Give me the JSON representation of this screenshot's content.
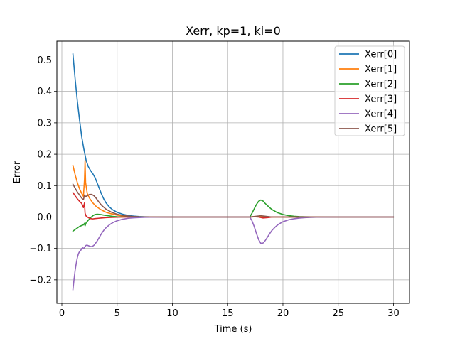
{
  "chart_data": {
    "type": "line",
    "title": "Xerr, kp=1, ki=0",
    "xlabel": "Time (s)",
    "ylabel": "Error",
    "xlim": [
      -0.45,
      31.45
    ],
    "ylim": [
      -0.275,
      0.56
    ],
    "xticks": [
      0,
      5,
      10,
      15,
      20,
      25,
      30
    ],
    "xtick_labels": [
      "0",
      "5",
      "10",
      "15",
      "20",
      "25",
      "30"
    ],
    "yticks": [
      -0.2,
      -0.1,
      0.0,
      0.1,
      0.2,
      0.3,
      0.4,
      0.5
    ],
    "ytick_labels": [
      "−0.2",
      "−0.1",
      "0.0",
      "0.1",
      "0.2",
      "0.3",
      "0.4",
      "0.5"
    ],
    "grid": true,
    "legend_position": "top-right",
    "series": [
      {
        "name": "Xerr[0]",
        "color": "#1f77b4",
        "x": [
          1.0,
          1.2,
          1.4,
          1.6,
          1.8,
          2.0,
          2.2,
          2.4,
          2.6,
          2.8,
          3.0,
          3.2,
          3.4,
          3.6,
          3.8,
          4.0,
          4.3,
          4.6,
          5.0,
          5.5,
          6.0,
          6.5,
          7.0,
          7.5,
          8.0,
          9.0,
          10.0,
          15.0,
          17.0,
          17.5,
          18.0,
          18.5,
          19.0,
          20.0,
          25.0,
          30.0
        ],
        "y": [
          0.52,
          0.44,
          0.37,
          0.31,
          0.255,
          0.215,
          0.18,
          0.16,
          0.148,
          0.138,
          0.126,
          0.108,
          0.09,
          0.072,
          0.057,
          0.045,
          0.032,
          0.023,
          0.015,
          0.009,
          0.005,
          0.003,
          0.0015,
          0.0008,
          0.0004,
          0.0001,
          0.0,
          0.0,
          0.0,
          0.001,
          0.002,
          0.001,
          0.0,
          0.0,
          0.0,
          0.0
        ]
      },
      {
        "name": "Xerr[1]",
        "color": "#ff7f0e",
        "x": [
          1.0,
          1.2,
          1.4,
          1.6,
          1.8,
          1.95,
          2.05,
          2.1,
          2.15,
          2.3,
          2.5,
          2.8,
          3.1,
          3.5,
          4.0,
          4.5,
          5.0,
          5.5,
          6.0,
          6.5,
          7.0,
          7.5,
          8.0,
          9.0,
          10.0,
          15.0,
          17.0,
          17.5,
          18.0,
          18.5,
          19.0,
          20.0,
          25.0,
          30.0
        ],
        "y": [
          0.165,
          0.135,
          0.11,
          0.09,
          0.075,
          0.066,
          0.12,
          0.18,
          0.11,
          0.075,
          0.06,
          0.045,
          0.034,
          0.024,
          0.015,
          0.01,
          0.006,
          0.0035,
          0.002,
          0.001,
          0.0005,
          0.0003,
          0.0001,
          0.0,
          0.0,
          0.0,
          0.0,
          0.001,
          0.003,
          0.001,
          0.0,
          0.0,
          0.0,
          0.0
        ]
      },
      {
        "name": "Xerr[2]",
        "color": "#2ca02c",
        "x": [
          1.0,
          1.2,
          1.4,
          1.6,
          1.8,
          1.95,
          2.05,
          2.1,
          2.2,
          2.4,
          2.6,
          2.8,
          3.0,
          3.2,
          3.5,
          3.8,
          4.2,
          4.6,
          5.0,
          5.5,
          6.0,
          7.0,
          8.0,
          10.0,
          15.0,
          17.0,
          17.2,
          17.4,
          17.6,
          17.8,
          18.0,
          18.2,
          18.4,
          18.7,
          19.0,
          19.5,
          20.0,
          20.5,
          21.0,
          21.5,
          22.0,
          23.0,
          25.0,
          30.0
        ],
        "y": [
          -0.045,
          -0.04,
          -0.035,
          -0.03,
          -0.027,
          -0.025,
          -0.02,
          -0.028,
          -0.018,
          -0.01,
          -0.002,
          0.004,
          0.008,
          0.009,
          0.008,
          0.006,
          0.004,
          0.002,
          0.001,
          0.0005,
          0.0002,
          0.0,
          0.0,
          0.0,
          0.0,
          0.0,
          0.012,
          0.026,
          0.04,
          0.05,
          0.054,
          0.051,
          0.043,
          0.033,
          0.024,
          0.014,
          0.008,
          0.0045,
          0.0025,
          0.0012,
          0.0006,
          0.0001,
          0.0,
          0.0
        ]
      },
      {
        "name": "Xerr[3]",
        "color": "#d62728",
        "x": [
          1.0,
          1.2,
          1.4,
          1.6,
          1.8,
          1.95,
          2.05,
          2.1,
          2.2,
          2.4,
          2.6,
          2.8,
          3.0,
          3.3,
          3.6,
          4.0,
          4.5,
          5.0,
          5.5,
          6.0,
          7.0,
          8.0,
          10.0,
          15.0,
          17.0,
          17.4,
          17.8,
          18.2,
          18.6,
          19.0,
          19.5,
          20.0,
          25.0,
          30.0
        ],
        "y": [
          0.078,
          0.068,
          0.058,
          0.05,
          0.043,
          0.03,
          0.045,
          0.012,
          0.003,
          -0.002,
          -0.005,
          -0.006,
          -0.005,
          -0.004,
          -0.003,
          -0.002,
          -0.001,
          -0.0005,
          -0.0002,
          0.0,
          0.0,
          0.0,
          0.0,
          0.0,
          0.0,
          0.001,
          0.0,
          -0.003,
          -0.002,
          0.0,
          0.0005,
          0.0,
          0.0,
          0.0
        ]
      },
      {
        "name": "Xerr[4]",
        "color": "#9467bd",
        "x": [
          1.0,
          1.1,
          1.2,
          1.3,
          1.4,
          1.5,
          1.6,
          1.7,
          1.8,
          1.9,
          2.0,
          2.1,
          2.2,
          2.3,
          2.45,
          2.6,
          2.75,
          2.9,
          3.0,
          3.2,
          3.4,
          3.6,
          3.8,
          4.0,
          4.3,
          4.6,
          5.0,
          5.5,
          6.0,
          6.5,
          7.0,
          7.5,
          8.0,
          9.0,
          10.0,
          15.0,
          17.0,
          17.2,
          17.4,
          17.6,
          17.8,
          18.0,
          18.2,
          18.4,
          18.6,
          18.8,
          19.0,
          19.3,
          19.6,
          20.0,
          20.5,
          21.0,
          21.5,
          22.0,
          22.5,
          23.0,
          24.0,
          25.0,
          30.0
        ],
        "y": [
          -0.232,
          -0.2,
          -0.17,
          -0.148,
          -0.13,
          -0.117,
          -0.11,
          -0.107,
          -0.1,
          -0.098,
          -0.1,
          -0.094,
          -0.09,
          -0.09,
          -0.092,
          -0.094,
          -0.094,
          -0.09,
          -0.086,
          -0.076,
          -0.064,
          -0.052,
          -0.042,
          -0.034,
          -0.025,
          -0.018,
          -0.012,
          -0.007,
          -0.004,
          -0.0025,
          -0.0015,
          -0.0008,
          -0.0004,
          -0.0001,
          0.0,
          0.0,
          0.0,
          -0.012,
          -0.03,
          -0.052,
          -0.072,
          -0.084,
          -0.083,
          -0.075,
          -0.064,
          -0.053,
          -0.043,
          -0.032,
          -0.023,
          -0.015,
          -0.009,
          -0.0055,
          -0.0033,
          -0.002,
          -0.001,
          -0.0006,
          -0.0002,
          0.0,
          0.0
        ]
      },
      {
        "name": "Xerr[5]",
        "color": "#8c564b",
        "x": [
          1.0,
          1.2,
          1.4,
          1.6,
          1.8,
          1.95,
          2.05,
          2.15,
          2.3,
          2.5,
          2.7,
          2.9,
          3.1,
          3.3,
          3.6,
          4.0,
          4.5,
          5.0,
          5.5,
          6.0,
          6.5,
          7.0,
          8.0,
          10.0,
          15.0,
          17.0,
          17.5,
          18.0,
          18.5,
          19.0,
          20.0,
          25.0,
          30.0
        ],
        "y": [
          0.105,
          0.092,
          0.08,
          0.07,
          0.06,
          0.055,
          0.07,
          0.065,
          0.068,
          0.072,
          0.072,
          0.068,
          0.06,
          0.05,
          0.037,
          0.025,
          0.015,
          0.009,
          0.005,
          0.003,
          0.0015,
          0.0008,
          0.0002,
          0.0,
          0.0,
          0.0,
          0.002,
          0.004,
          0.002,
          0.0,
          0.0,
          0.0,
          0.0
        ]
      }
    ]
  }
}
